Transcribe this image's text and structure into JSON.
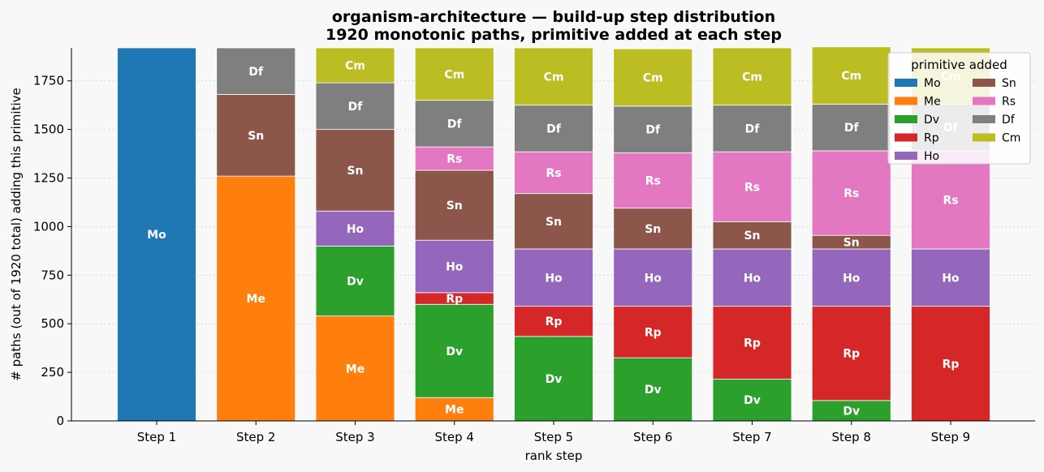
{
  "chart_data": {
    "type": "bar",
    "stacked": true,
    "title": "organism-architecture — build-up step distribution",
    "subtitle": "1920 monotonic paths, primitive added at each step",
    "xlabel": "rank step",
    "ylabel": "# paths (out of 1920 total) adding this primitive",
    "ylim": [
      0,
      1920
    ],
    "yticks": [
      0,
      250,
      500,
      750,
      1000,
      1250,
      1500,
      1750
    ],
    "grid": true,
    "categories": [
      "Step 1",
      "Step 2",
      "Step 3",
      "Step 4",
      "Step 5",
      "Step 6",
      "Step 7",
      "Step 8",
      "Step 9"
    ],
    "legend": {
      "title": "primitive added",
      "position": "top-right"
    },
    "series": [
      {
        "name": "Mo",
        "color": "#1f77b4",
        "values": [
          1920,
          0,
          0,
          0,
          0,
          0,
          0,
          0,
          0
        ]
      },
      {
        "name": "Me",
        "color": "#ff7f0e",
        "values": [
          0,
          1260,
          540,
          120,
          0,
          0,
          0,
          0,
          0
        ]
      },
      {
        "name": "Dv",
        "color": "#2ca02c",
        "values": [
          0,
          0,
          360,
          480,
          435,
          325,
          215,
          105,
          0
        ]
      },
      {
        "name": "Rp",
        "color": "#d62728",
        "values": [
          0,
          0,
          0,
          60,
          155,
          265,
          375,
          485,
          590
        ]
      },
      {
        "name": "Ho",
        "color": "#9467bd",
        "values": [
          0,
          0,
          180,
          270,
          295,
          295,
          295,
          295,
          295
        ]
      },
      {
        "name": "Sn",
        "color": "#8c564b",
        "values": [
          0,
          420,
          420,
          360,
          285,
          210,
          140,
          70,
          0
        ]
      },
      {
        "name": "Rs",
        "color": "#e377c2",
        "values": [
          0,
          0,
          0,
          120,
          215,
          285,
          360,
          435,
          505
        ]
      },
      {
        "name": "Df",
        "color": "#7f7f7f",
        "values": [
          0,
          240,
          240,
          240,
          240,
          240,
          240,
          240,
          240
        ]
      },
      {
        "name": "Cm",
        "color": "#bcbd22",
        "values": [
          0,
          0,
          180,
          270,
          295,
          295,
          295,
          295,
          290
        ]
      }
    ]
  }
}
